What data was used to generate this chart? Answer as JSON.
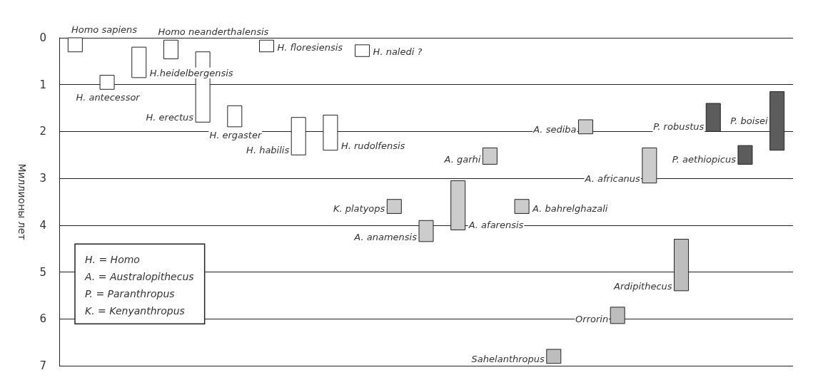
{
  "chart_data": {
    "type": "bar",
    "ylabel": "Миллионы лет",
    "categories": [
      null,
      null,
      null,
      null,
      null,
      null,
      null,
      null,
      null,
      null,
      null,
      null,
      null,
      null,
      null,
      null,
      null,
      null,
      null,
      null,
      null,
      null,
      null
    ],
    "base": [
      0,
      0.8,
      0.2,
      0.05,
      0.3,
      1.45,
      0.05,
      1.7,
      1.65,
      0.15,
      3.45,
      3.9,
      3.05,
      2.35,
      3.45,
      6.65,
      1.75,
      5.75,
      2.35,
      4.3,
      1.4,
      2.3,
      1.15
    ],
    "values": [
      0.3,
      0.3,
      0.65,
      0.4,
      1.5,
      0.45,
      0.25,
      0.8,
      0.75,
      0.25,
      0.3,
      0.45,
      1.05,
      0.35,
      0.3,
      0.3,
      0.3,
      0.35,
      0.75,
      1.1,
      0.6,
      0.4,
      1.25
    ],
    "colors": [
      "#ffffff",
      "#ffffff",
      "#ffffff",
      "#ffffff",
      "#ffffff",
      "#ffffff",
      "#ffffff",
      "#ffffff",
      "#ffffff",
      "#ffffff",
      "#cccccc",
      "#cccccc",
      "#cccccc",
      "#cccccc",
      "#cccccc",
      "#bdbdbd",
      "#cccccc",
      "#bdbdbd",
      "#cccccc",
      "#bdbdbd",
      "#5c5c5c",
      "#5c5c5c",
      "#5c5c5c"
    ],
    "ylim": [
      7,
      0
    ],
    "yticks": [
      0,
      1,
      2,
      3,
      4,
      5,
      6,
      7
    ],
    "grid": "y",
    "tick_labels": "y",
    "annotations": [
      "Homo sapiens",
      "H. antecessor",
      "H.heidelbergensis",
      "Homo neanderthalensis",
      "H. erectus",
      "H. ergaster",
      "H. floresiensis",
      "H. habilis",
      "H. rudolfensis",
      "H. naledi ?",
      "K. platyops",
      "A. anamensis",
      "A. afarensis",
      "A. garhi",
      "A. bahrelghazali",
      "Sahelanthropus",
      "A. sediba",
      "Orrorin",
      "A. africanus",
      "Ardipithecus",
      "P. robustus",
      "P. aethiopicus",
      "P. boisei",
      "H. = Homo",
      "A. = Australopithecus",
      "P. = Paranthropus",
      "K. = Kenyanthropus"
    ]
  }
}
